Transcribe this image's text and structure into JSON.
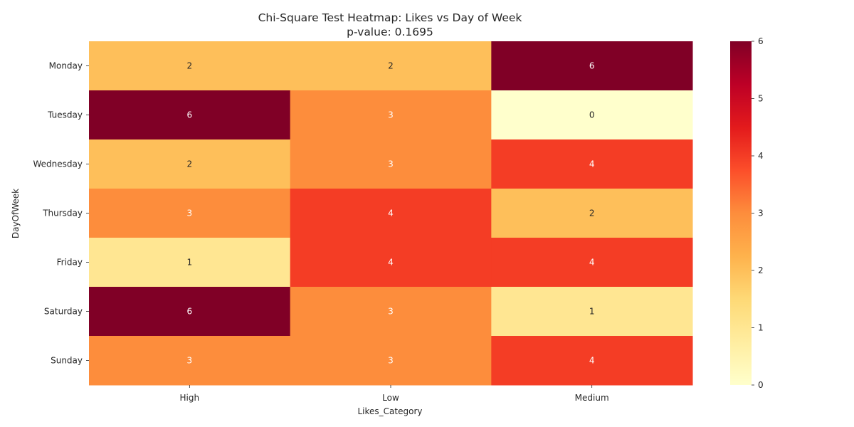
{
  "chart_data": {
    "type": "heatmap",
    "title": "Chi-Square Test Heatmap: Likes vs Day of Week",
    "subtitle": "p-value: 0.1695",
    "xlabel": "Likes_Category",
    "ylabel": "DayOfWeek",
    "x_categories": [
      "High",
      "Low",
      "Medium"
    ],
    "y_categories": [
      "Monday",
      "Tuesday",
      "Wednesday",
      "Thursday",
      "Friday",
      "Saturday",
      "Sunday"
    ],
    "values": [
      [
        2,
        2,
        6
      ],
      [
        6,
        3,
        0
      ],
      [
        2,
        3,
        4
      ],
      [
        3,
        4,
        2
      ],
      [
        1,
        4,
        4
      ],
      [
        6,
        3,
        1
      ],
      [
        3,
        3,
        4
      ]
    ],
    "colorbar": {
      "range": [
        0,
        6
      ],
      "ticks": [
        "0",
        "1",
        "2",
        "3",
        "4",
        "5",
        "6"
      ],
      "colormap": "YlOrRd"
    }
  }
}
